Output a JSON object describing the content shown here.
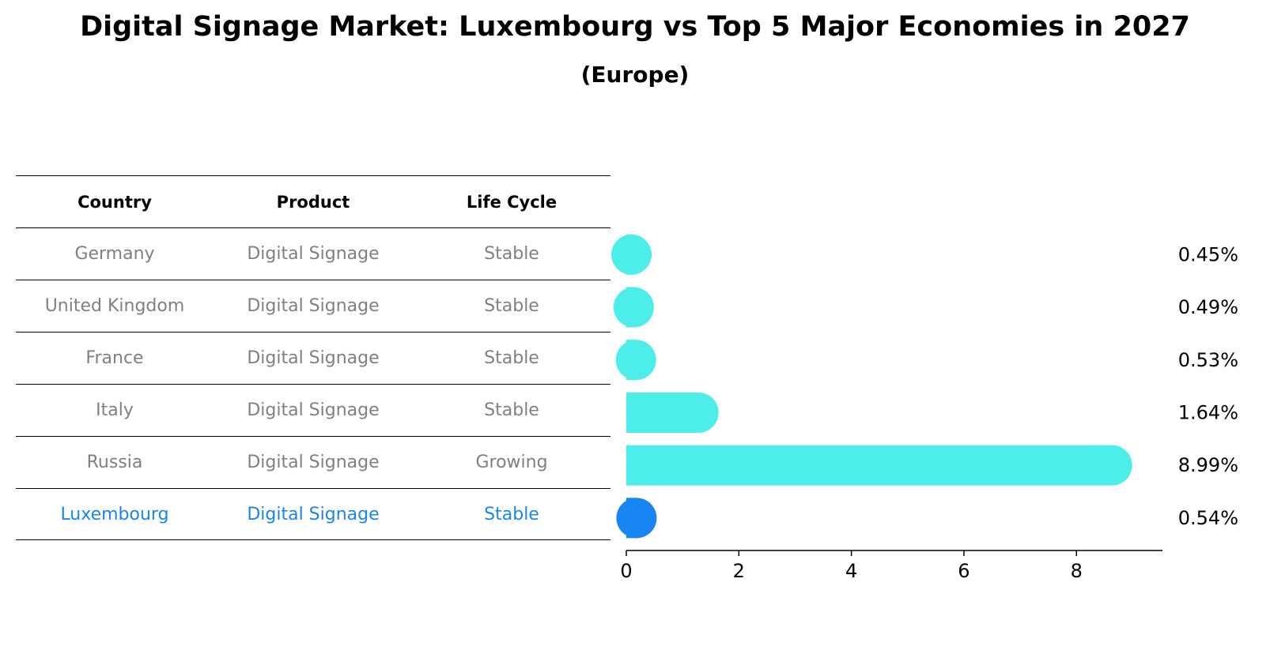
{
  "title": "Digital Signage Market: Luxembourg vs Top 5 Major Economies in 2027",
  "subtitle": "(Europe)",
  "table": {
    "headers": [
      "Country",
      "Product",
      "Life Cycle"
    ],
    "rows": [
      [
        "Germany",
        "Digital Signage",
        "Stable"
      ],
      [
        "United Kingdom",
        "Digital Signage",
        "Stable"
      ],
      [
        "France",
        "Digital Signage",
        "Stable"
      ],
      [
        "Italy",
        "Digital Signage",
        "Stable"
      ],
      [
        "Russia",
        "Digital Signage",
        "Growing"
      ],
      [
        "Luxembourg",
        "Digital Signage",
        "Stable"
      ]
    ],
    "highlight_row": 5
  },
  "colors": {
    "bar": "#4deeea",
    "highlight": "#1885f2",
    "muted_text": "#808080",
    "text": "#000000"
  },
  "chart_data": {
    "type": "bar",
    "orientation": "horizontal",
    "title": "Digital Signage Market: Luxembourg vs Top 5 Major Economies in 2027",
    "subtitle": "(Europe)",
    "categories": [
      "Germany",
      "United Kingdom",
      "France",
      "Italy",
      "Russia",
      "Luxembourg"
    ],
    "values": [
      0.45,
      0.49,
      0.53,
      1.64,
      8.99,
      0.54
    ],
    "value_labels": [
      "0.45%",
      "0.49%",
      "0.53%",
      "1.64%",
      "8.99%",
      "0.54%"
    ],
    "xlim": [
      0,
      9.5
    ],
    "xticks": [
      0,
      2,
      4,
      6,
      8
    ],
    "xtick_labels": [
      "0",
      "2",
      "4",
      "6",
      "8"
    ],
    "highlight": "Luxembourg",
    "xlabel": "",
    "ylabel": ""
  }
}
